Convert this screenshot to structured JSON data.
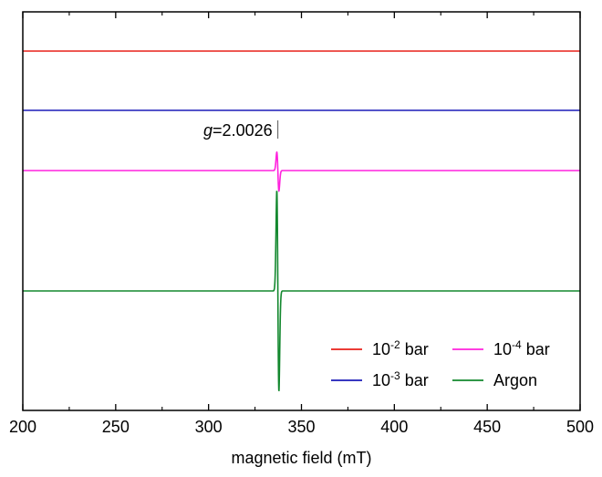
{
  "chart_data": {
    "type": "line",
    "title": "",
    "xlabel": "magnetic field (mT)",
    "ylabel": "",
    "xlim": [
      200,
      500
    ],
    "xticks": [
      200,
      250,
      300,
      350,
      400,
      450,
      500
    ],
    "xtick_labels": [
      "200",
      "250",
      "300",
      "350",
      "400",
      "450",
      "500"
    ],
    "y_axis_ticks_labeled": false,
    "grid": false,
    "legend_position": "bottom-right",
    "legend_columns": 2,
    "series": [
      {
        "name": "10-2 bar",
        "name_base": "10",
        "name_exp": "-2",
        "name_suffix": " bar",
        "color": "#e8201a",
        "stack_order": 1,
        "peak_up": 0,
        "peak_down": 0
      },
      {
        "name": "10-3 bar",
        "name_base": "10",
        "name_exp": "-3",
        "name_suffix": " bar",
        "color": "#1c1cb8",
        "stack_order": 2,
        "peak_up": 0,
        "peak_down": 0
      },
      {
        "name": "10-4 bar",
        "name_base": "10",
        "name_exp": "-4",
        "name_suffix": " bar",
        "color": "#ff22dd",
        "stack_order": 3,
        "peak_up": 0.9,
        "peak_down": 1.0
      },
      {
        "name": "Argon",
        "name_base": "",
        "name_exp": "",
        "name_suffix": "Argon",
        "color": "#13882e",
        "stack_order": 4,
        "peak_up": 4.9,
        "peak_down": 4.9
      }
    ],
    "resonance_center_mT": 337.3,
    "resonance_half_width_mT": 0.8,
    "annotations": [
      {
        "text_italic": "g",
        "text_rest": "=2.0026",
        "at_x_mT": 337.3
      }
    ]
  }
}
